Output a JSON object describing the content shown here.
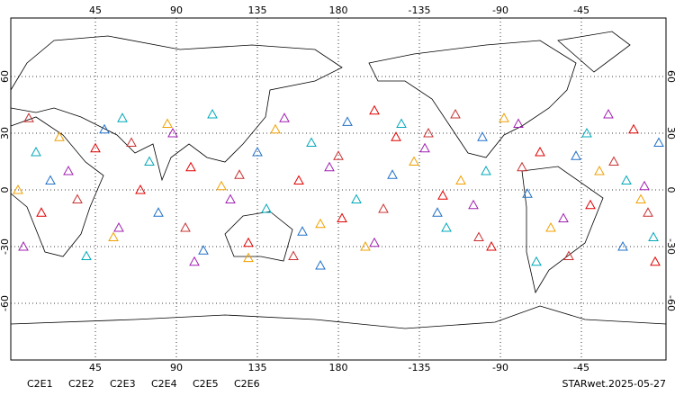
{
  "chart_data": {
    "type": "scatter",
    "xlim": [
      -2,
      362
    ],
    "ylim": [
      -90,
      90
    ],
    "xticks": [
      45,
      90,
      135,
      180,
      {
        "value": 225,
        "label": "-135"
      },
      {
        "value": 270,
        "label": "-90"
      },
      {
        "value": 315,
        "label": "-45"
      }
    ],
    "yticks": [
      -60,
      -30,
      0,
      30,
      60
    ],
    "grid": true,
    "footer": "STARwet.2025-05-27",
    "series": [
      {
        "name": "C2E1",
        "color": "#00a8b8",
        "x": [
          12,
          40,
          75,
          110,
          140,
          165,
          190,
          215,
          240,
          262,
          290,
          318,
          340,
          355,
          60
        ],
        "y": [
          20,
          -35,
          15,
          40,
          -10,
          25,
          -5,
          35,
          -20,
          10,
          -38,
          30,
          5,
          -25,
          38
        ]
      },
      {
        "name": "C2E2",
        "color": "#a020b0",
        "x": [
          5,
          30,
          58,
          88,
          120,
          150,
          175,
          200,
          228,
          255,
          280,
          305,
          330,
          350,
          100
        ],
        "y": [
          -30,
          10,
          -20,
          30,
          -5,
          38,
          12,
          -28,
          22,
          -8,
          35,
          -15,
          40,
          2,
          -38
        ]
      },
      {
        "name": "C2E3",
        "color": "#2070c8",
        "x": [
          20,
          50,
          80,
          105,
          135,
          160,
          185,
          210,
          235,
          260,
          285,
          312,
          338,
          358,
          170
        ],
        "y": [
          5,
          32,
          -12,
          -32,
          20,
          -22,
          36,
          8,
          -12,
          28,
          -2,
          18,
          -30,
          25,
          -40
        ]
      },
      {
        "name": "C2E4",
        "color": "#c83030",
        "x": [
          8,
          35,
          65,
          95,
          125,
          155,
          180,
          205,
          230,
          258,
          282,
          308,
          333,
          352,
          245
        ],
        "y": [
          38,
          -5,
          25,
          -20,
          8,
          -35,
          18,
          -10,
          30,
          -25,
          12,
          -35,
          15,
          -12,
          40
        ]
      },
      {
        "name": "C2E5",
        "color": "#e00000",
        "x": [
          15,
          45,
          70,
          98,
          130,
          158,
          182,
          212,
          238,
          265,
          292,
          320,
          344,
          356,
          200
        ],
        "y": [
          -12,
          22,
          0,
          12,
          -28,
          5,
          -15,
          28,
          -3,
          -30,
          20,
          -8,
          32,
          -38,
          42
        ]
      },
      {
        "name": "C2E6",
        "color": "#f0a000",
        "x": [
          25,
          55,
          85,
          115,
          145,
          170,
          195,
          222,
          248,
          272,
          298,
          325,
          348,
          2,
          130
        ],
        "y": [
          28,
          -25,
          35,
          2,
          32,
          -18,
          -30,
          15,
          5,
          38,
          -20,
          10,
          -5,
          0,
          -36
        ]
      }
    ]
  }
}
